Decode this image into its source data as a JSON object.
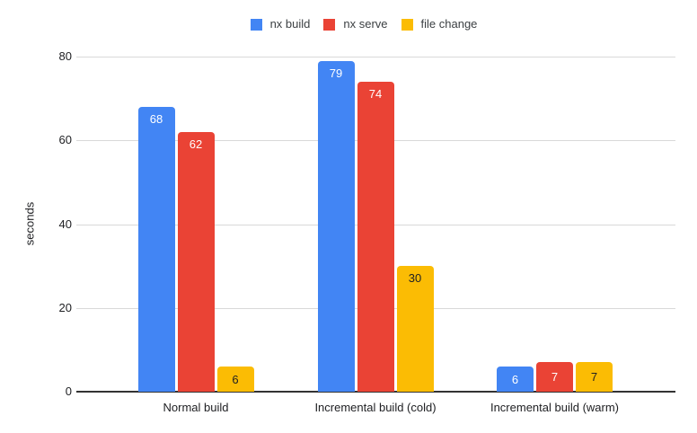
{
  "chart_data": {
    "type": "bar",
    "title": "",
    "xlabel": "",
    "ylabel": "seconds",
    "ylim": [
      0,
      80
    ],
    "yticks": [
      0,
      20,
      40,
      60,
      80
    ],
    "grid": true,
    "legend_position": "top",
    "categories": [
      "Normal build",
      "Incremental build (cold)",
      "Incremental build (warm)"
    ],
    "series": [
      {
        "name": "nx build",
        "color": "#4285F4",
        "label_color": "#ffffff",
        "values": [
          68,
          79,
          6
        ]
      },
      {
        "name": "nx serve",
        "color": "#EA4335",
        "label_color": "#ffffff",
        "values": [
          62,
          74,
          7
        ]
      },
      {
        "name": "file change",
        "color": "#FBBC04",
        "label_color": "#202124",
        "values": [
          6,
          30,
          7
        ]
      }
    ]
  },
  "colors": {
    "background": "#ffffff",
    "gridline": "#d9d9d9",
    "baseline": "#333333",
    "axis_text": "#202124",
    "legend_text": "#3c4043"
  }
}
